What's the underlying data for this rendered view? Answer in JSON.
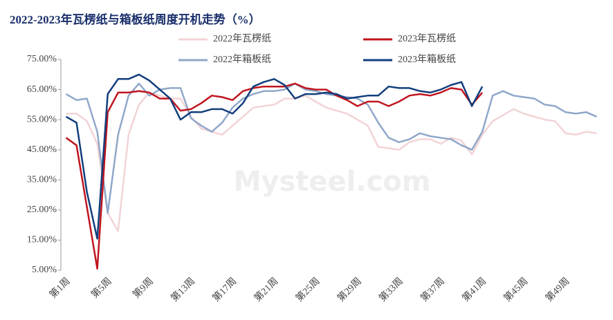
{
  "chart_data": {
    "type": "line",
    "title": "2022-2023年瓦楞纸与箱板纸周度开机走势（%）",
    "watermark": "Mysteel.com",
    "categories": [
      "第1周",
      null,
      null,
      null,
      "第5周",
      null,
      null,
      null,
      "第9周",
      null,
      null,
      null,
      "第13周",
      null,
      null,
      null,
      "第17周",
      null,
      null,
      null,
      "第21周",
      null,
      null,
      null,
      "第25周",
      null,
      null,
      null,
      "第29周",
      null,
      null,
      null,
      "第33周",
      null,
      null,
      null,
      "第37周",
      null,
      null,
      null,
      "第41周",
      null,
      null,
      null,
      "第45周",
      null,
      null,
      null,
      "第49周",
      null,
      null,
      null
    ],
    "series": [
      {
        "name": "2022年瓦楞纸",
        "color": "#f2d3d6",
        "values": [
          57,
          57,
          54.5,
          47,
          24,
          18,
          50,
          60,
          64,
          63,
          62,
          62,
          56,
          52,
          51,
          50,
          53,
          56,
          59,
          59.5,
          60,
          62,
          62,
          63,
          61,
          59,
          58,
          57,
          55,
          53,
          46,
          45.5,
          45,
          47.5,
          48.5,
          48.5,
          47,
          49,
          48,
          43.5,
          50,
          54.5,
          56.5,
          58.5,
          57,
          56,
          55,
          54.5,
          50.5,
          50,
          51,
          50.5
        ]
      },
      {
        "name": "2022年箱板纸",
        "color": "#8fa7c9",
        "values": [
          63.5,
          61.5,
          62,
          51,
          24,
          50,
          63,
          67,
          63,
          65,
          65.5,
          65.5,
          55.5,
          53,
          51,
          54,
          59,
          62,
          63.5,
          64.5,
          64.5,
          65,
          67,
          65,
          64.5,
          63.5,
          63,
          62.5,
          62,
          60,
          54,
          49,
          47.5,
          48.5,
          50.5,
          49.5,
          49,
          48.5,
          46.5,
          45,
          51,
          63,
          64.5,
          63,
          62.5,
          62,
          60,
          59.5,
          57.5,
          57,
          57.5,
          56
        ]
      },
      {
        "name": "2023年瓦楞纸",
        "color": "#c0141e",
        "values": [
          49,
          46.5,
          26,
          5.5,
          57.5,
          64,
          64,
          64.5,
          64,
          62,
          62,
          58,
          58.5,
          60.5,
          63,
          62.5,
          61.5,
          64.5,
          65.5,
          66,
          66,
          66,
          67,
          65.5,
          65,
          65,
          63,
          61.5,
          59.5,
          61,
          61,
          59.5,
          61,
          63,
          63.5,
          63,
          64,
          65.5,
          65,
          60,
          64,
          null,
          null,
          null,
          null,
          null,
          null,
          null,
          null,
          null,
          null,
          null
        ]
      },
      {
        "name": "2023年箱板纸",
        "color": "#123e7c",
        "values": [
          56,
          54,
          31,
          15.5,
          63.5,
          68.5,
          68.5,
          70,
          68,
          65,
          62,
          55,
          57.5,
          57.5,
          58.5,
          58.5,
          57,
          60.5,
          66,
          67.5,
          68.5,
          66.5,
          62,
          63.5,
          63.5,
          64,
          63.5,
          62,
          62.5,
          63,
          63,
          66,
          65.5,
          65.5,
          64.5,
          64,
          65,
          66.5,
          67.5,
          59.5,
          66,
          null,
          null,
          null,
          null,
          null,
          null,
          null,
          null,
          null,
          null,
          null
        ]
      }
    ],
    "ylim": [
      5,
      75
    ],
    "yticks": [
      {
        "value": 5,
        "label": "5.00%"
      },
      {
        "value": 15,
        "label": "15.00%"
      },
      {
        "value": 25,
        "label": "25.00%"
      },
      {
        "value": 35,
        "label": "35.00%"
      },
      {
        "value": 45,
        "label": "45.00%"
      },
      {
        "value": 55,
        "label": "55.00%"
      },
      {
        "value": 65,
        "label": "65.00%"
      },
      {
        "value": 75,
        "label": "75.00%"
      }
    ]
  }
}
